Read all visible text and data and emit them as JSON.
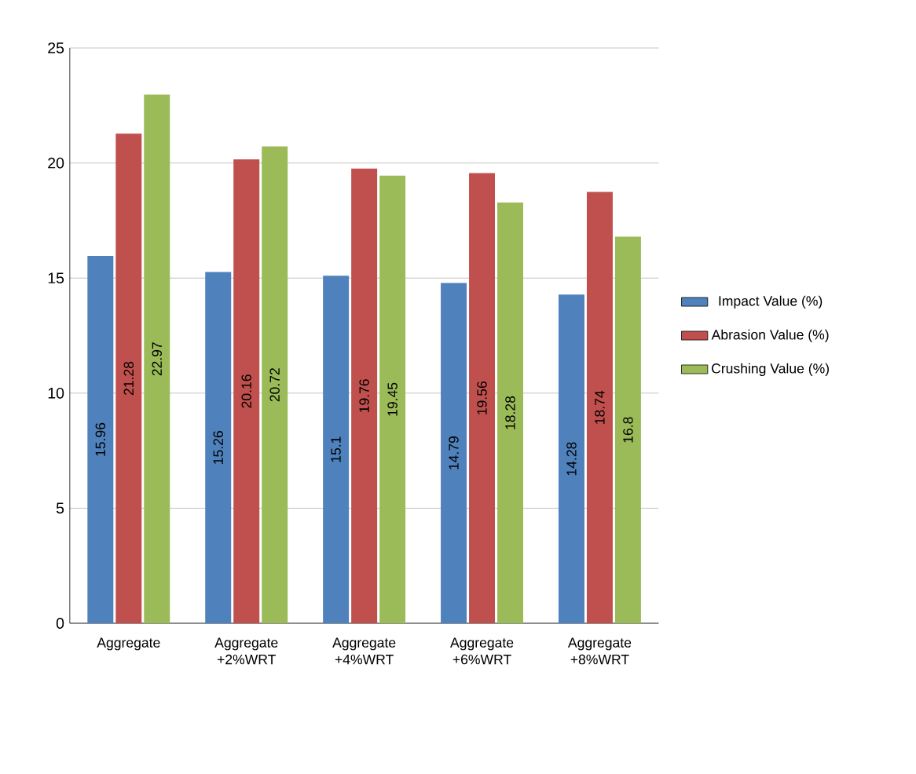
{
  "chart_data": {
    "type": "bar",
    "categories": [
      "Aggregate",
      "Aggregate +2%WRT",
      "Aggregate +4%WRT",
      "Aggregate +6%WRT",
      "Aggregate +8%WRT"
    ],
    "series": [
      {
        "name": "Impact Value (%)",
        "color": "#4f81bd",
        "values": [
          15.96,
          15.26,
          15.1,
          14.79,
          14.28
        ]
      },
      {
        "name": "Abrasion Value (%)",
        "color": "#c0504d",
        "values": [
          21.28,
          20.16,
          19.76,
          19.56,
          18.74
        ]
      },
      {
        "name": "Crushing Value (%)",
        "color": "#9bbb59",
        "values": [
          22.97,
          20.72,
          19.45,
          18.28,
          16.8
        ]
      }
    ],
    "ylim": [
      0,
      25
    ],
    "yticks": [
      0,
      5,
      10,
      15,
      20,
      25
    ],
    "grid": "y",
    "legend": "right",
    "data_labels": true
  }
}
